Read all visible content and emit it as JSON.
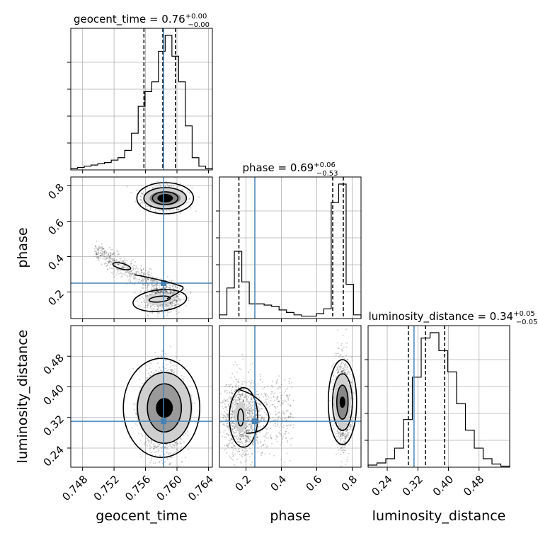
{
  "chart_data": {
    "type": "corner",
    "parameters": [
      "geocent_time",
      "phase",
      "luminosity_distance"
    ],
    "truths": {
      "geocent_time": 0.7583,
      "phase": 0.25,
      "luminosity_distance": 0.31
    },
    "titles": [
      {
        "param": "geocent_time",
        "text": "geocent_time = 0.76",
        "sup": "+0.00",
        "sub": "−0.00"
      },
      {
        "param": "phase",
        "text": "phase = 0.69",
        "sup": "+0.06",
        "sub": "−0.53"
      },
      {
        "param": "luminosity_distance",
        "text": "luminosity_distance = 0.34",
        "sup": "+0.05",
        "sub": "−0.05"
      }
    ],
    "axes": {
      "geocent_time": {
        "range": [
          0.7465,
          0.7645
        ],
        "ticks": [
          0.748,
          0.752,
          0.756,
          0.76,
          0.764
        ],
        "tick_labels": [
          "0.748",
          "0.752",
          "0.756",
          "0.760",
          "0.764"
        ]
      },
      "phase": {
        "range": [
          0.05,
          0.85
        ],
        "ticks": [
          0.2,
          0.4,
          0.6,
          0.8
        ],
        "tick_labels": [
          "0.2",
          "0.4",
          "0.6",
          "0.8"
        ],
        "row_ticks": [
          0.2,
          0.4,
          0.6,
          0.8
        ],
        "row_tick_labels": [
          "0.2",
          "0.4",
          "0.6",
          "0.8"
        ]
      },
      "luminosity_distance": {
        "range": [
          0.19,
          0.56
        ],
        "ticks": [
          0.24,
          0.32,
          0.4,
          0.48
        ],
        "tick_labels": [
          "0.24",
          "0.32",
          "0.40",
          "0.48"
        ]
      }
    },
    "axis_labels": {
      "x": [
        "geocent_time",
        "phase",
        "luminosity_distance"
      ],
      "y": [
        "phase",
        "luminosity_distance"
      ]
    },
    "marginals": {
      "geocent_time": {
        "range": [
          0.7465,
          0.7645
        ],
        "counts": [
          1,
          2,
          3,
          4,
          5,
          6,
          8,
          10,
          16,
          30,
          52,
          64,
          72,
          97,
          110,
          93,
          72,
          36,
          10,
          3,
          1
        ],
        "quantiles": [
          0.7558,
          0.7582,
          0.7598
        ]
      },
      "phase": {
        "range": [
          0.05,
          0.85
        ],
        "counts": [
          3,
          25,
          55,
          30,
          12,
          12,
          11,
          10,
          7,
          5,
          3,
          2,
          2,
          4,
          8,
          95,
          110,
          28,
          3
        ],
        "quantiles": [
          0.16,
          0.69,
          0.75
        ]
      },
      "luminosity_distance": {
        "range": [
          0.19,
          0.56
        ],
        "counts": [
          2,
          4,
          8,
          18,
          45,
          85,
          122,
          127,
          110,
          90,
          60,
          35,
          18,
          8,
          3,
          1
        ],
        "quantiles": [
          0.295,
          0.34,
          0.39
        ]
      }
    },
    "grid": true,
    "truth_color": "#4682b4"
  }
}
